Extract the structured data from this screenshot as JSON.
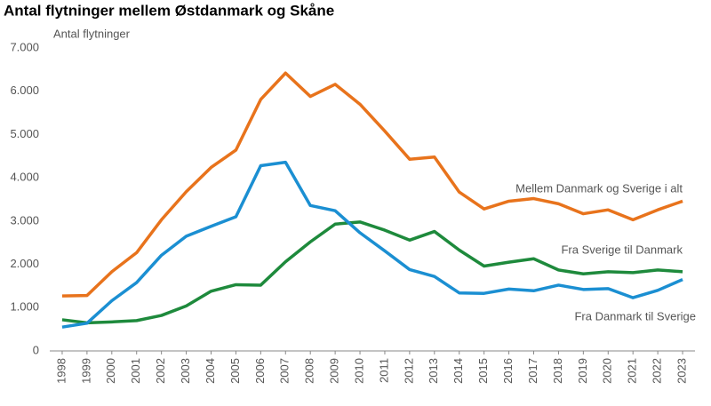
{
  "chart_data": {
    "type": "line",
    "title": "Antal flytninger mellem Østdanmark og Skåne",
    "y_label": "Antal flytninger",
    "categories": [
      "1998",
      "1999",
      "2000",
      "2001",
      "2002",
      "2003",
      "2004",
      "2005",
      "2006",
      "2007",
      "2008",
      "2009",
      "2010",
      "2011",
      "2012",
      "2013",
      "2014",
      "2015",
      "2016",
      "2017",
      "2018",
      "2019",
      "2020",
      "2021",
      "2022",
      "2023"
    ],
    "series": [
      {
        "name": "Mellem Danmark og Sverige i alt",
        "color": "#e8731c",
        "values": [
          1270,
          1280,
          1830,
          2270,
          3030,
          3680,
          4240,
          4640,
          5810,
          6420,
          5880,
          6160,
          5700,
          5080,
          4430,
          4480,
          3670,
          3280,
          3460,
          3520,
          3400,
          3170,
          3260,
          3030,
          3260,
          3460
        ]
      },
      {
        "name": "Fra Sverige til Danmark",
        "color": "#1e8a3c",
        "values": [
          720,
          650,
          670,
          700,
          820,
          1040,
          1380,
          1530,
          1520,
          2060,
          2520,
          2930,
          2980,
          2790,
          2560,
          2760,
          2330,
          1960,
          2050,
          2130,
          1870,
          1780,
          1830,
          1810,
          1870,
          1830
        ]
      },
      {
        "name": "Fra Danmark til Sverige",
        "color": "#1b8fd2",
        "values": [
          550,
          640,
          1160,
          1580,
          2210,
          2650,
          2880,
          3100,
          4280,
          4360,
          3360,
          3240,
          2730,
          2310,
          1880,
          1720,
          1340,
          1330,
          1430,
          1390,
          1520,
          1420,
          1440,
          1230,
          1400,
          1650
        ]
      }
    ],
    "ylim": [
      0,
      7000
    ],
    "yticks": [
      0,
      {
        "value": 1000,
        "label": "1.000"
      },
      {
        "value": 2000,
        "label": "2.000"
      },
      {
        "value": 3000,
        "label": "3.000"
      },
      {
        "value": 4000,
        "label": "4.000"
      },
      {
        "value": 5000,
        "label": "5.000"
      },
      {
        "value": 6000,
        "label": "6.000"
      },
      {
        "value": 7000,
        "label": "7.000"
      }
    ],
    "grid": false
  }
}
